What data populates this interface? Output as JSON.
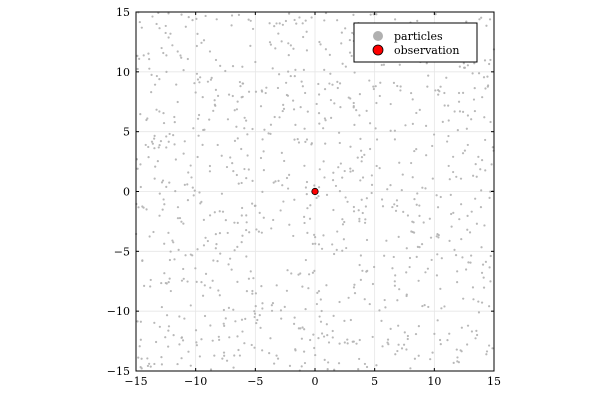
{
  "chart_data": {
    "type": "scatter",
    "title": "",
    "xlabel": "",
    "ylabel": "",
    "xlim": [
      -15,
      15
    ],
    "ylim": [
      -15,
      15
    ],
    "x_ticks": [
      -15,
      -10,
      -5,
      0,
      5,
      10,
      15
    ],
    "y_ticks": [
      -15,
      -10,
      -5,
      0,
      5,
      10,
      15
    ],
    "x_tick_labels": [
      "−15",
      "−10",
      "−5",
      "0",
      "5",
      "10",
      "15"
    ],
    "y_tick_labels": [
      "−15",
      "−10",
      "−5",
      "0",
      "5",
      "10",
      "15"
    ],
    "grid": true,
    "legend_position": "top-right",
    "series": [
      {
        "name": "particles",
        "color": "#b0b0b0",
        "distribution": "uniform random scatter over the full plotted area",
        "approx_point_count": 1000
      },
      {
        "name": "observation",
        "color": "#ff0000",
        "points": [
          [
            0,
            0
          ]
        ]
      }
    ]
  }
}
